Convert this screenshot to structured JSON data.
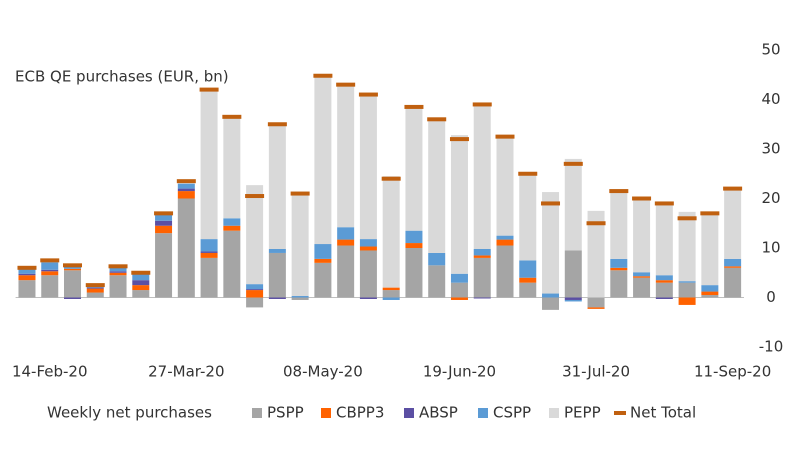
{
  "chart_data": {
    "type": "bar",
    "stacked": true,
    "title": "ECB QE purchases (EUR, bn)",
    "legend_title": "Weekly net purchases",
    "categories": [
      null,
      "14-Feb-20",
      null,
      null,
      null,
      null,
      null,
      "27-Mar-20",
      null,
      null,
      null,
      null,
      null,
      "08-May-20",
      null,
      null,
      null,
      null,
      null,
      "19-Jun-20",
      null,
      null,
      null,
      null,
      null,
      "31-Jul-20",
      null,
      null,
      null,
      null,
      null,
      "11-Sep-20"
    ],
    "series": [
      {
        "name": "PSPP",
        "color": "#a5a5a5",
        "values": [
          3.5,
          4.5,
          5.5,
          1,
          4.5,
          1.5,
          13,
          20,
          8,
          13.5,
          -2,
          9,
          -0.5,
          7,
          10.5,
          9.5,
          1.5,
          10,
          6.5,
          3,
          8,
          10.5,
          3,
          -2.5,
          9.5,
          -2,
          5.5,
          4,
          3,
          3,
          0.5,
          6
        ]
      },
      {
        "name": "CBPP3",
        "color": "#ff6200",
        "values": [
          1,
          0.8,
          0.3,
          0.8,
          0.5,
          1,
          1.5,
          1.5,
          1,
          1,
          1.5,
          0,
          0,
          0.8,
          1.2,
          0.8,
          0.5,
          1,
          0,
          -0.5,
          0.5,
          1.2,
          1,
          0,
          0,
          -0.3,
          0.5,
          0.3,
          0.5,
          -1.5,
          0.7,
          0.3
        ]
      },
      {
        "name": "ABSP",
        "color": "#5b4fa3",
        "values": [
          0.3,
          0.3,
          -0.3,
          0.2,
          0.3,
          1,
          1,
          0.5,
          0.3,
          0,
          0.2,
          -0.3,
          0,
          0,
          0,
          -0.3,
          0,
          0,
          0,
          0,
          -0.2,
          0,
          0,
          0,
          -0.5,
          0,
          0,
          0,
          -0.3,
          0,
          0,
          0
        ]
      },
      {
        "name": "CSPP",
        "color": "#5b9bd5",
        "values": [
          1,
          1.5,
          0.8,
          0.3,
          1,
          1.5,
          1.5,
          1,
          2.5,
          1.5,
          1,
          0.8,
          0.3,
          3,
          2.5,
          1.5,
          -0.5,
          2.5,
          2.5,
          1.8,
          1.3,
          0.8,
          3.5,
          0.8,
          -0.3,
          0,
          1.8,
          0.8,
          1,
          0.3,
          1.3,
          1.5
        ]
      },
      {
        "name": "PEPP",
        "color": "#d9d9d9",
        "values": [
          0,
          0,
          0,
          0,
          0,
          0,
          0,
          0,
          30,
          20.5,
          20,
          25.5,
          21,
          34,
          29,
          29.5,
          22.5,
          25,
          27,
          28,
          29.5,
          20,
          17.5,
          20.5,
          18.5,
          17.5,
          13.5,
          15,
          14.5,
          14,
          14.5,
          14
        ]
      },
      {
        "name": "Net Total",
        "color": "#c0600f",
        "type": "marker",
        "values": [
          6,
          7.5,
          6.5,
          2.5,
          6.3,
          5,
          17,
          23.5,
          42,
          36.5,
          20.5,
          35,
          21,
          44.8,
          43,
          41,
          24,
          38.5,
          36,
          32,
          39,
          32.5,
          25,
          19,
          27,
          15,
          21.5,
          20,
          19,
          16,
          17,
          22
        ]
      }
    ],
    "ylim": [
      -10,
      50
    ],
    "yticks": [
      -10,
      0,
      10,
      20,
      30,
      40,
      50
    ],
    "grid": false,
    "y_axis_side": "right"
  }
}
